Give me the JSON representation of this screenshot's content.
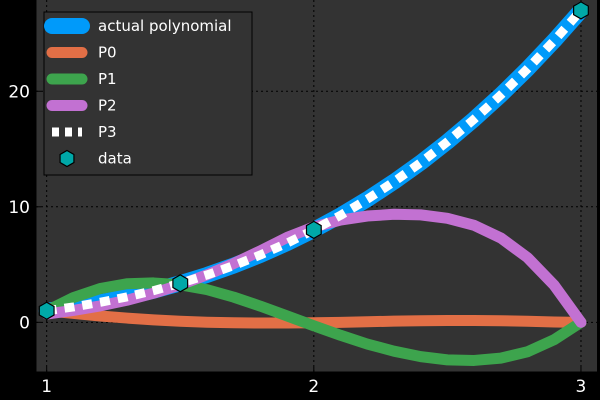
{
  "chart_data": {
    "type": "line",
    "xlim": [
      0.96,
      3.06
    ],
    "ylim": [
      -4.3,
      27.9
    ],
    "x_ticks": [
      "1",
      "2",
      "3"
    ],
    "y_ticks": [
      "0",
      "10",
      "20"
    ],
    "grid": true,
    "legend_position": "top-left",
    "colors": {
      "figure_bg": "#000000",
      "plot_bg": "#333333",
      "grid": "#000000",
      "axis": "#000000"
    },
    "series": [
      {
        "name": "actual polynomial",
        "style": "thick-solid",
        "color": "#009AFA",
        "x": [
          1,
          1.1,
          1.2,
          1.3,
          1.4,
          1.5,
          1.6,
          1.7,
          1.8,
          1.9,
          2,
          2.1,
          2.2,
          2.3,
          2.4,
          2.5,
          2.6,
          2.7,
          2.8,
          2.9,
          3
        ],
        "y": [
          1,
          1.33,
          1.73,
          2.2,
          2.74,
          3.38,
          4.1,
          4.91,
          5.83,
          6.86,
          8,
          9.26,
          10.65,
          12.17,
          13.82,
          15.63,
          17.58,
          19.68,
          21.95,
          24.39,
          27
        ]
      },
      {
        "name": "P0",
        "style": "solid",
        "color": "#E26F46",
        "x": [
          1,
          1.1,
          1.2,
          1.3,
          1.4,
          1.5,
          1.6,
          1.7,
          1.8,
          1.9,
          2,
          2.1,
          2.2,
          2.3,
          2.4,
          2.5,
          2.6,
          2.7,
          2.8,
          2.9,
          3
        ],
        "y": [
          1,
          0.77,
          0.55,
          0.37,
          0.21,
          0.09,
          0.01,
          -0.04,
          -0.06,
          -0.06,
          -0.04,
          0,
          0.05,
          0.1,
          0.14,
          0.16,
          0.16,
          0.14,
          0.09,
          0.03,
          0
        ]
      },
      {
        "name": "P1",
        "style": "solid",
        "color": "#3DA44D",
        "x": [
          1,
          1.1,
          1.2,
          1.3,
          1.4,
          1.5,
          1.6,
          1.7,
          1.8,
          1.9,
          2,
          2.1,
          2.2,
          2.3,
          2.4,
          2.5,
          2.6,
          2.7,
          2.8,
          2.9,
          3
        ],
        "y": [
          1,
          2.14,
          2.92,
          3.34,
          3.41,
          3.25,
          2.83,
          2.18,
          1.4,
          0.55,
          -0.3,
          -1.12,
          -1.88,
          -2.5,
          -2.97,
          -3.25,
          -3.3,
          -3.1,
          -2.55,
          -1.5,
          0
        ]
      },
      {
        "name": "P2",
        "style": "solid",
        "color": "#C271D2",
        "x": [
          1,
          1.1,
          1.2,
          1.3,
          1.4,
          1.5,
          1.6,
          1.7,
          1.8,
          1.9,
          2,
          2.1,
          2.2,
          2.3,
          2.4,
          2.5,
          2.6,
          2.7,
          2.8,
          2.9,
          3
        ],
        "y": [
          0.72,
          1.03,
          1.42,
          1.91,
          2.52,
          3.25,
          4.11,
          5.09,
          6.19,
          7.35,
          8.25,
          8.85,
          9.2,
          9.35,
          9.3,
          9.0,
          8.4,
          7.3,
          5.6,
          3.2,
          0
        ]
      },
      {
        "name": "P3",
        "style": "dashed",
        "color": "#FFFFFF",
        "x": [
          1,
          1.1,
          1.2,
          1.3,
          1.4,
          1.5,
          1.6,
          1.7,
          1.8,
          1.9,
          2,
          2.1,
          2.2,
          2.3,
          2.4,
          2.5,
          2.6,
          2.7,
          2.8,
          2.9,
          3
        ],
        "y": [
          1,
          1.33,
          1.73,
          2.2,
          2.74,
          3.38,
          4.1,
          4.91,
          5.83,
          6.86,
          8,
          9.26,
          10.65,
          12.17,
          13.82,
          15.63,
          17.58,
          19.68,
          21.95,
          24.39,
          27
        ]
      },
      {
        "name": "data",
        "style": "markers",
        "color": "#00A8A8",
        "x": [
          1,
          1.5,
          2,
          3
        ],
        "y": [
          1,
          3.375,
          8,
          27
        ]
      }
    ]
  }
}
